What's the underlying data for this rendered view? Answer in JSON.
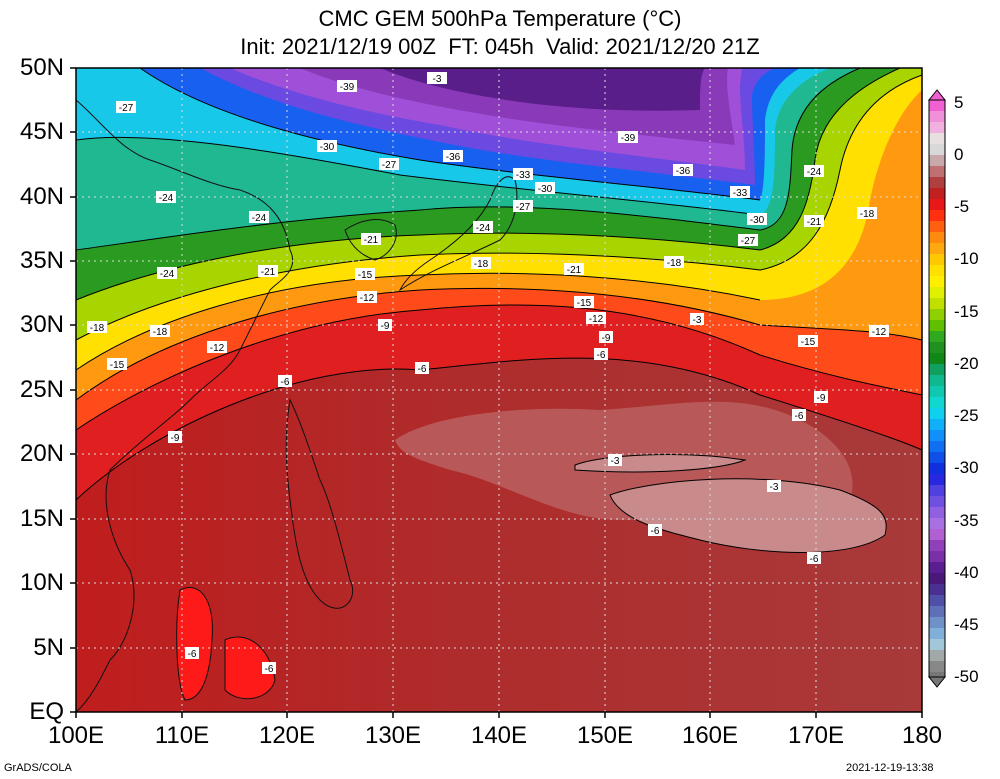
{
  "title": {
    "line1": "CMC GEM 500hPa Temperature (°C)",
    "line2": "Init: 2021/12/19 00Z  FT: 045h  Valid: 2021/12/20 21Z"
  },
  "lat_labels": [
    "50N",
    "45N",
    "40N",
    "35N",
    "30N",
    "25N",
    "20N",
    "15N",
    "10N",
    "5N",
    "EQ"
  ],
  "lon_labels": [
    "100E",
    "110E",
    "120E",
    "130E",
    "140E",
    "150E",
    "160E",
    "170E",
    "180"
  ],
  "colorbar": {
    "labels": [
      "5",
      "0",
      "-5",
      "-10",
      "-15",
      "-20",
      "-25",
      "-30",
      "-35",
      "-40",
      "-45",
      "-50"
    ]
  },
  "contour_labels": [
    "-42",
    "-39",
    "-39",
    "-36",
    "-36",
    "-33",
    "-33",
    "-30",
    "-30",
    "-30",
    "-27",
    "-27",
    "-27",
    "-27",
    "-24",
    "-24",
    "-24",
    "-24",
    "-24",
    "-21",
    "-21",
    "-21",
    "-21",
    "-18",
    "-18",
    "-18",
    "-18",
    "-18",
    "-15",
    "-15",
    "-15",
    "-15",
    "-12",
    "-12",
    "-12",
    "-12",
    "-9",
    "-9",
    "-9",
    "-9",
    "-6",
    "-6",
    "-6",
    "-6",
    "-6",
    "-6",
    "-6",
    "-6",
    "-3",
    "-3",
    "-3",
    "-3"
  ],
  "footer": {
    "left": "GrADS/COLA",
    "right": "2021-12-19-13:38"
  }
}
